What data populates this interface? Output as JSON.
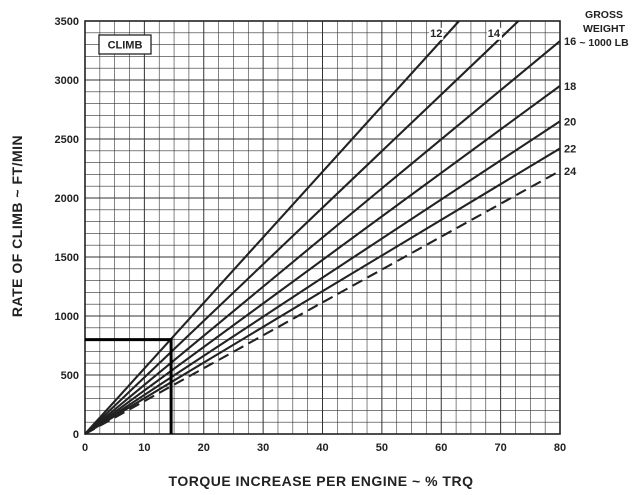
{
  "chart_data": {
    "type": "line",
    "tag": "CLIMB",
    "xlabel": "TORQUE INCREASE PER ENGINE ~ % TRQ",
    "ylabel": "RATE OF CLIMB ~ FT/MIN",
    "legend_title": [
      "GROSS",
      "WEIGHT",
      "~ 1000 LB"
    ],
    "xlim": [
      0,
      80
    ],
    "ylim": [
      0,
      3500
    ],
    "x_ticks": [
      0,
      10,
      20,
      30,
      40,
      50,
      60,
      70,
      80
    ],
    "y_ticks": [
      0,
      500,
      1000,
      1500,
      2000,
      2500,
      3000,
      3500
    ],
    "grid": true,
    "series": [
      {
        "name": "12",
        "style": "solid",
        "points": [
          [
            0,
            0
          ],
          [
            63,
            3500
          ]
        ]
      },
      {
        "name": "14",
        "style": "solid",
        "points": [
          [
            0,
            0
          ],
          [
            73,
            3500
          ]
        ]
      },
      {
        "name": "16",
        "style": "solid",
        "points": [
          [
            0,
            0
          ],
          [
            80,
            3330
          ]
        ]
      },
      {
        "name": "18",
        "style": "solid",
        "points": [
          [
            0,
            0
          ],
          [
            80,
            2950
          ]
        ]
      },
      {
        "name": "20",
        "style": "solid",
        "points": [
          [
            0,
            0
          ],
          [
            80,
            2650
          ]
        ]
      },
      {
        "name": "22",
        "style": "solid",
        "points": [
          [
            0,
            0
          ],
          [
            80,
            2420
          ]
        ]
      },
      {
        "name": "24",
        "style": "dashed",
        "points": [
          [
            0,
            0
          ],
          [
            80,
            2230
          ]
        ]
      }
    ],
    "example_path": [
      [
        0,
        800
      ],
      [
        14.5,
        800
      ],
      [
        14.5,
        0
      ]
    ]
  }
}
